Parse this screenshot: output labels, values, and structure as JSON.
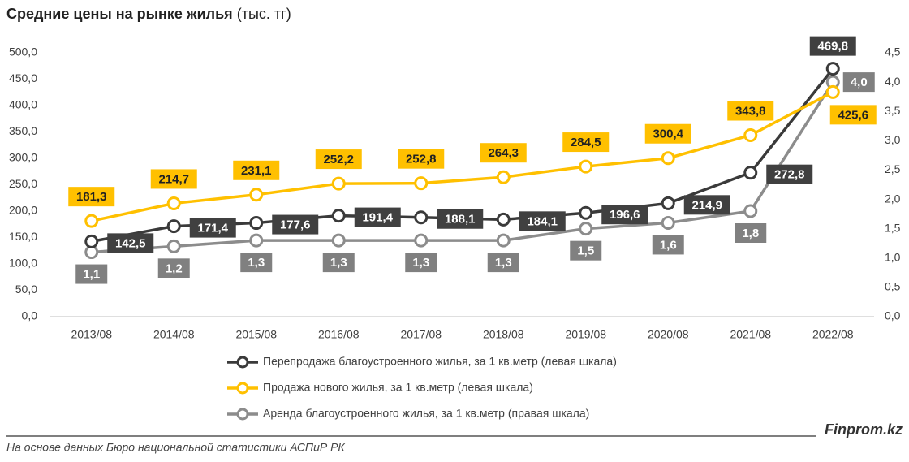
{
  "chart_data": {
    "type": "line",
    "title": "Средние цены на рынке жилья",
    "title_unit": "(тыс. тг)",
    "categories": [
      "2013/08",
      "2014/08",
      "2015/08",
      "2016/08",
      "2017/08",
      "2018/08",
      "2019/08",
      "2020/08",
      "2021/08",
      "2022/08"
    ],
    "series": [
      {
        "name": "Перепродажа благоустроенного жилья, за 1 кв.метр (левая шкала)",
        "color": "#3a3a3a",
        "values": [
          142.5,
          171.4,
          177.6,
          191.4,
          188.1,
          184.1,
          196.6,
          214.9,
          272.8,
          469.8
        ],
        "value_labels": [
          "142,5",
          "171,4",
          "177,6",
          "191,4",
          "188,1",
          "184,1",
          "196,6",
          "214,9",
          "272,8",
          "469,8"
        ]
      },
      {
        "name": "Продажа нового жилья, за 1 кв.метр (левая шкала)",
        "color": "#ffc000",
        "values": [
          181.3,
          214.7,
          231.1,
          252.2,
          252.8,
          264.3,
          284.5,
          300.4,
          343.8,
          425.6
        ],
        "value_labels": [
          "181,3",
          "214,7",
          "231,1",
          "252,2",
          "252,8",
          "264,3",
          "284,5",
          "300,4",
          "343,8",
          "425,6"
        ]
      },
      {
        "name": "Аренда благоустроенного жилья, за 1 кв.метр (правая шкала)",
        "color": "#8c8c8c",
        "axis": "y2",
        "values": [
          1.1,
          1.2,
          1.3,
          1.3,
          1.3,
          1.3,
          1.5,
          1.6,
          1.8,
          4.0
        ],
        "value_labels": [
          "1,1",
          "1,2",
          "1,3",
          "1,3",
          "1,3",
          "1,3",
          "1,5",
          "1,6",
          "1,8",
          "4,0"
        ]
      }
    ],
    "ylim": [
      0,
      500
    ],
    "yticks": [
      {
        "value": 0,
        "label": "0,0"
      },
      {
        "value": 50,
        "label": "50,0"
      },
      {
        "value": 100,
        "label": "100,0"
      },
      {
        "value": 150,
        "label": "150,0"
      },
      {
        "value": 200,
        "label": "200,0"
      },
      {
        "value": 250,
        "label": "250,0"
      },
      {
        "value": 300,
        "label": "300,0"
      },
      {
        "value": 350,
        "label": "350,0"
      },
      {
        "value": 400,
        "label": "400,0"
      },
      {
        "value": 450,
        "label": "450,0"
      },
      {
        "value": 500,
        "label": "500,0"
      }
    ],
    "y2lim": [
      0,
      4.5
    ],
    "y2ticks": [
      {
        "value": 0,
        "label": "0,0"
      },
      {
        "value": 0.5,
        "label": "0,5"
      },
      {
        "value": 1,
        "label": "1,0"
      },
      {
        "value": 1.5,
        "label": "1,5"
      },
      {
        "value": 2,
        "label": "2,0"
      },
      {
        "value": 2.5,
        "label": "2,5"
      },
      {
        "value": 3,
        "label": "3,0"
      },
      {
        "value": 3.5,
        "label": "3,5"
      },
      {
        "value": 4,
        "label": "4,0"
      },
      {
        "value": 4.5,
        "label": "4,5"
      }
    ],
    "grid": false,
    "legend": "bottom",
    "source": "На основе данных Бюро национальной статистики АСПиР РК",
    "brand": "Finprom.kz"
  }
}
